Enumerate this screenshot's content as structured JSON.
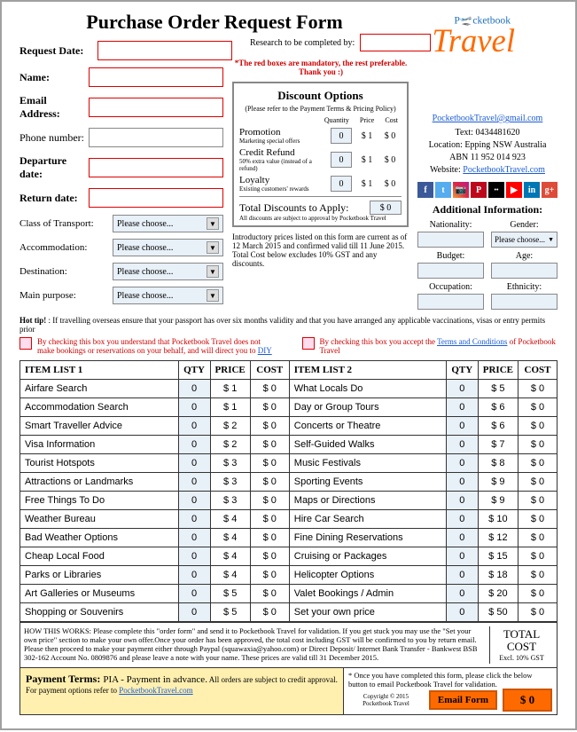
{
  "title": "Purchase Order Request Form",
  "fields": {
    "request_date_label": "Request Date:",
    "research_label": "Research to be completed by:",
    "name_label": "Name:",
    "email_label": "Email Address:",
    "phone_label": "Phone number:",
    "departure_label": "Departure date:",
    "return_label": "Return date:",
    "class_label": "Class of Transport:",
    "accom_label": "Accommodation:",
    "dest_label": "Destination:",
    "purpose_label": "Main purpose:",
    "please_choose": "Please choose..."
  },
  "mandatory_note": "*The red boxes are mandatory, the rest preferable. Thank you :)",
  "discount": {
    "title": "Discount Options",
    "subtitle": "(Please refer to the Payment Terms & Pricing Policy)",
    "col_qty": "Quantity",
    "col_price": "Price",
    "col_cost": "Cost",
    "rows": [
      {
        "label": "Promotion",
        "sub": "Marketing special offers",
        "qty": "0",
        "price": "$ 1",
        "cost": "$ 0"
      },
      {
        "label": "Credit Refund",
        "sub": "50% extra value (instead of a refund)",
        "qty": "0",
        "price": "$ 1",
        "cost": "$ 0"
      },
      {
        "label": "Loyalty",
        "sub": "Existing customers' rewards",
        "qty": "0",
        "price": "$ 1",
        "cost": "$ 0"
      }
    ],
    "total_label": "Total Discounts to Apply:",
    "total_sub": "All discounts are subject to approval by Pocketbook Travel",
    "total_val": "$ 0"
  },
  "intro_note": "Introductory prices listed on this form are current as of 12 March 2015 and confirmed valid till 11 June 2015. Total Cost below excludes 10% GST and any discounts.",
  "company": {
    "email": "PocketbookTravel@gmail.com",
    "text": "Text: 0434481620",
    "loc": "Location: Epping NSW Australia",
    "abn": "ABN 11 952 014 923",
    "web_label": "Website: ",
    "web": "PocketbookTravel.com"
  },
  "addl": {
    "title": "Additional Information:",
    "nat": "Nationality:",
    "gen": "Gender:",
    "bud": "Budget:",
    "age": "Age:",
    "occ": "Occupation:",
    "eth": "Ethnicity:"
  },
  "hot_tip": "Hot tip! : If travelling overseas ensure that your passport has over six months validity and that you have arranged any applicable vaccinations, visas or entry permits prior",
  "check1": "By checking this box you understand that Pocketbook Travel does not make bookings or reservations on your behalf, and will direct you to ",
  "check1_link": "DIY",
  "check2": "By checking this box you accept the ",
  "check2_link": "Terms and Conditions",
  "check2_tail": " of Pocketbook Travel",
  "table": {
    "head1": "ITEM LIST 1",
    "head2": "ITEM LIST 2",
    "qty": "QTY",
    "price": "PRICE",
    "cost": "COST",
    "list1": [
      {
        "name": "Airfare Search",
        "qty": "0",
        "price": "$ 1",
        "cost": "$ 0"
      },
      {
        "name": "Accommodation Search",
        "qty": "0",
        "price": "$ 1",
        "cost": "$ 0"
      },
      {
        "name": "Smart Traveller Advice",
        "qty": "0",
        "price": "$ 2",
        "cost": "$ 0"
      },
      {
        "name": "Visa Information",
        "qty": "0",
        "price": "$ 2",
        "cost": "$ 0"
      },
      {
        "name": "Tourist Hotspots",
        "qty": "0",
        "price": "$ 3",
        "cost": "$ 0"
      },
      {
        "name": "Attractions or Landmarks",
        "qty": "0",
        "price": "$ 3",
        "cost": "$ 0"
      },
      {
        "name": "Free Things To Do",
        "qty": "0",
        "price": "$ 3",
        "cost": "$ 0"
      },
      {
        "name": "Weather Bureau",
        "qty": "0",
        "price": "$ 4",
        "cost": "$ 0"
      },
      {
        "name": "Bad Weather Options",
        "qty": "0",
        "price": "$ 4",
        "cost": "$ 0"
      },
      {
        "name": "Cheap Local Food",
        "qty": "0",
        "price": "$ 4",
        "cost": "$ 0"
      },
      {
        "name": "Parks or Libraries",
        "qty": "0",
        "price": "$ 4",
        "cost": "$ 0"
      },
      {
        "name": "Art Galleries or Museums",
        "qty": "0",
        "price": "$ 5",
        "cost": "$ 0"
      },
      {
        "name": "Shopping or Souvenirs",
        "qty": "0",
        "price": "$ 5",
        "cost": "$ 0"
      }
    ],
    "list2": [
      {
        "name": "What Locals Do",
        "qty": "0",
        "price": "$ 5",
        "cost": "$ 0"
      },
      {
        "name": "Day or Group Tours",
        "qty": "0",
        "price": "$ 6",
        "cost": "$ 0"
      },
      {
        "name": "Concerts or Theatre",
        "qty": "0",
        "price": "$ 6",
        "cost": "$ 0"
      },
      {
        "name": "Self-Guided Walks",
        "qty": "0",
        "price": "$ 7",
        "cost": "$ 0"
      },
      {
        "name": "Music Festivals",
        "qty": "0",
        "price": "$ 8",
        "cost": "$ 0"
      },
      {
        "name": "Sporting Events",
        "qty": "0",
        "price": "$ 9",
        "cost": "$ 0"
      },
      {
        "name": "Maps or Directions",
        "qty": "0",
        "price": "$ 9",
        "cost": "$ 0"
      },
      {
        "name": "Hire Car Search",
        "qty": "0",
        "price": "$ 10",
        "cost": "$ 0"
      },
      {
        "name": "Fine Dining Reservations",
        "qty": "0",
        "price": "$ 12",
        "cost": "$ 0"
      },
      {
        "name": "Cruising or Packages",
        "qty": "0",
        "price": "$ 15",
        "cost": "$ 0"
      },
      {
        "name": "Helicopter Options",
        "qty": "0",
        "price": "$ 18",
        "cost": "$ 0"
      },
      {
        "name": "Valet Bookings / Admin",
        "qty": "0",
        "price": "$ 20",
        "cost": "$ 0"
      },
      {
        "name": "Set your own price",
        "qty": "0",
        "price": "$ 50",
        "cost": "$ 0"
      }
    ]
  },
  "how_works": "HOW THIS WORKS: Please complete this \"order form\" and send it to Pocketbook Travel for validation. If you get stuck you may use the \"Set your own price\" section to make your own offer.Once your order has been approved, the total cost including GST will be confirmed to you by return email. Please then proceed to make your payment either through Paypal (squawaxia@yahoo.com) or Direct Deposit/ Internet Bank Transfer - Bankwest BSB 302-162 Account No. 0809876 and please leave a note with your name. These prices are valid till 31 December 2015.",
  "total_cost_label": "TOTAL COST",
  "excl_gst": "Excl. 10% GST",
  "payment": {
    "head": "Payment Terms: ",
    "pia": "PIA - Payment in advance.",
    "tail1": "  All orders are subject to credit approval. For payment options refer to ",
    "link": "PocketbookTravel.com"
  },
  "email_note": "* Once you have completed this form, please click the below button to email Pocketbook Travel for validation.",
  "email_btn": "Email Form",
  "final_cost": "$ 0",
  "copyright": "Copyright © 2015 Pocketbook Travel"
}
